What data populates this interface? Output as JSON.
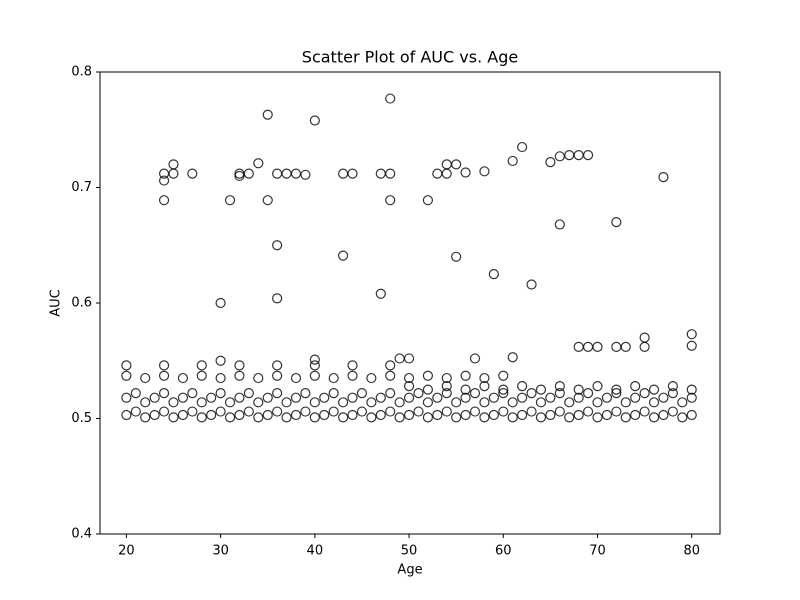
{
  "chart_data": {
    "type": "scatter",
    "title": "Scatter Plot of AUC vs. Age",
    "x_label": "Age",
    "y_label": "AUC",
    "color": "#000000",
    "xlim": [
      17.2,
      83.0
    ],
    "ylim": [
      0.4,
      0.8
    ],
    "xticks": [
      20,
      30,
      40,
      50,
      60,
      70,
      80
    ],
    "yticks": [
      0.4,
      0.5,
      0.6,
      0.7,
      0.8
    ],
    "x": [
      20,
      21,
      22,
      23,
      24,
      25,
      26,
      27,
      28,
      29,
      30,
      31,
      32,
      33,
      34,
      35,
      36,
      37,
      38,
      39,
      40,
      41,
      42,
      43,
      44,
      45,
      46,
      47,
      48,
      49,
      50,
      51,
      52,
      53,
      54,
      55,
      56,
      57,
      58,
      59,
      60,
      61,
      62,
      63,
      64,
      65,
      66,
      67,
      68,
      69,
      70,
      71,
      72,
      73,
      74,
      75,
      76,
      77,
      78,
      79,
      80,
      20,
      21,
      22,
      23,
      24,
      25,
      26,
      27,
      28,
      29,
      30,
      31,
      32,
      33,
      34,
      35,
      36,
      37,
      38,
      39,
      40,
      41,
      42,
      43,
      44,
      45,
      46,
      47,
      48,
      49,
      50,
      51,
      52,
      53,
      54,
      55,
      56,
      57,
      58,
      59,
      60,
      61,
      62,
      63,
      64,
      65,
      66,
      67,
      68,
      69,
      70,
      71,
      72,
      73,
      74,
      75,
      76,
      77,
      78,
      79,
      80,
      20,
      22,
      24,
      26,
      28,
      30,
      32,
      34,
      36,
      38,
      40,
      42,
      44,
      46,
      48,
      50,
      52,
      54,
      56,
      58,
      60,
      50,
      52,
      54,
      56,
      58,
      60,
      62,
      64,
      66,
      68,
      70,
      72,
      74,
      76,
      78,
      80,
      20,
      24,
      28,
      32,
      36,
      40,
      44,
      48,
      24,
      24,
      24,
      25,
      25,
      27,
      30,
      31,
      32,
      32,
      33,
      34,
      35,
      35,
      36,
      36,
      36,
      37,
      38,
      39,
      40,
      43,
      43,
      44,
      47,
      47,
      48,
      48,
      48,
      52,
      53,
      54,
      54,
      55,
      55,
      56,
      58,
      59,
      61,
      62,
      63,
      65,
      66,
      66,
      67,
      68,
      69,
      72,
      77,
      68,
      69,
      70,
      72,
      73,
      75,
      75,
      80,
      80,
      49,
      50,
      57,
      61,
      40,
      30
    ],
    "values": [
      0.503,
      0.506,
      0.501,
      0.503,
      0.506,
      0.501,
      0.503,
      0.506,
      0.501,
      0.503,
      0.506,
      0.501,
      0.503,
      0.506,
      0.501,
      0.503,
      0.506,
      0.501,
      0.503,
      0.506,
      0.501,
      0.503,
      0.506,
      0.501,
      0.503,
      0.506,
      0.501,
      0.503,
      0.506,
      0.501,
      0.503,
      0.506,
      0.501,
      0.503,
      0.506,
      0.501,
      0.503,
      0.506,
      0.501,
      0.503,
      0.506,
      0.501,
      0.503,
      0.506,
      0.501,
      0.503,
      0.506,
      0.501,
      0.503,
      0.506,
      0.501,
      0.503,
      0.506,
      0.501,
      0.503,
      0.506,
      0.501,
      0.503,
      0.506,
      0.501,
      0.503,
      0.518,
      0.522,
      0.514,
      0.518,
      0.522,
      0.514,
      0.518,
      0.522,
      0.514,
      0.518,
      0.522,
      0.514,
      0.518,
      0.522,
      0.514,
      0.518,
      0.522,
      0.514,
      0.518,
      0.522,
      0.514,
      0.518,
      0.522,
      0.514,
      0.518,
      0.522,
      0.514,
      0.518,
      0.522,
      0.514,
      0.518,
      0.522,
      0.514,
      0.518,
      0.522,
      0.514,
      0.518,
      0.522,
      0.514,
      0.518,
      0.522,
      0.514,
      0.518,
      0.522,
      0.514,
      0.518,
      0.522,
      0.514,
      0.518,
      0.522,
      0.514,
      0.518,
      0.522,
      0.514,
      0.518,
      0.522,
      0.514,
      0.518,
      0.522,
      0.514,
      0.518,
      0.537,
      0.535,
      0.537,
      0.535,
      0.537,
      0.535,
      0.537,
      0.535,
      0.537,
      0.535,
      0.537,
      0.535,
      0.537,
      0.535,
      0.537,
      0.535,
      0.537,
      0.535,
      0.537,
      0.535,
      0.537,
      0.528,
      0.525,
      0.528,
      0.525,
      0.528,
      0.525,
      0.528,
      0.525,
      0.528,
      0.525,
      0.528,
      0.525,
      0.528,
      0.525,
      0.528,
      0.525,
      0.546,
      0.546,
      0.546,
      0.546,
      0.546,
      0.546,
      0.546,
      0.546,
      0.712,
      0.706,
      0.689,
      0.72,
      0.712,
      0.712,
      0.6,
      0.689,
      0.712,
      0.71,
      0.712,
      0.721,
      0.763,
      0.689,
      0.712,
      0.65,
      0.604,
      0.712,
      0.712,
      0.711,
      0.758,
      0.712,
      0.641,
      0.712,
      0.712,
      0.608,
      0.777,
      0.712,
      0.689,
      0.689,
      0.712,
      0.72,
      0.712,
      0.72,
      0.64,
      0.713,
      0.714,
      0.625,
      0.723,
      0.735,
      0.616,
      0.722,
      0.727,
      0.668,
      0.728,
      0.728,
      0.728,
      0.67,
      0.709,
      0.562,
      0.562,
      0.562,
      0.562,
      0.562,
      0.57,
      0.562,
      0.573,
      0.563,
      0.552,
      0.552,
      0.552,
      0.553,
      0.551,
      0.55
    ]
  }
}
